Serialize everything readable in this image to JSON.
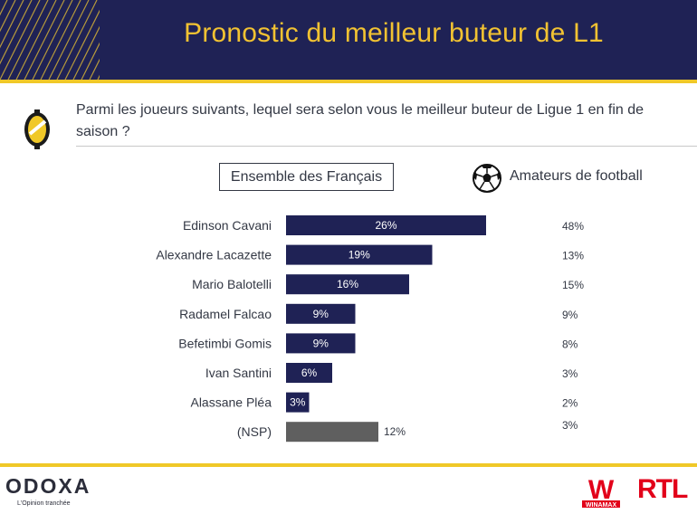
{
  "header": {
    "title": "Pronostic du meilleur buteur de L1"
  },
  "question": {
    "text": "Parmi les joueurs suivants, lequel sera selon vous le meilleur buteur de Ligue 1 en fin de saison ?"
  },
  "legend": {
    "all_label": "Ensemble des Français",
    "amateurs_label": "Amateurs de football",
    "amateurs_icon": "soccer-ball-icon"
  },
  "colors": {
    "header_bg": "#1f2255",
    "accent": "#f0c828",
    "bar": "#1f2255",
    "bar_nsp": "#5f5f5f"
  },
  "chart_data": {
    "type": "bar",
    "orientation": "horizontal",
    "categories": [
      "Edinson Cavani",
      "Alexandre Lacazette",
      "Mario Balotelli",
      "Radamel Falcao",
      "Befetimbi Gomis",
      "Ivan Santini",
      "Alassane Pléa",
      "(NSP)"
    ],
    "series": [
      {
        "name": "Ensemble des Français",
        "values": [
          26,
          19,
          16,
          9,
          9,
          6,
          3,
          12
        ],
        "labels": [
          "26%",
          "19%",
          "16%",
          "9%",
          "9%",
          "6%",
          "3%",
          "12%"
        ]
      },
      {
        "name": "Amateurs de football",
        "values": [
          48,
          13,
          15,
          9,
          8,
          3,
          2,
          3
        ],
        "labels": [
          "48%",
          "13%",
          "15%",
          "9%",
          "8%",
          "3%",
          "2%",
          "3%"
        ]
      }
    ],
    "unit": "%"
  },
  "footer": {
    "brand": "ODOXA",
    "tagline": "L'Opinion tranchée",
    "sponsors": [
      "WINAMAX",
      "RTL"
    ],
    "winamax_letter": "W"
  }
}
